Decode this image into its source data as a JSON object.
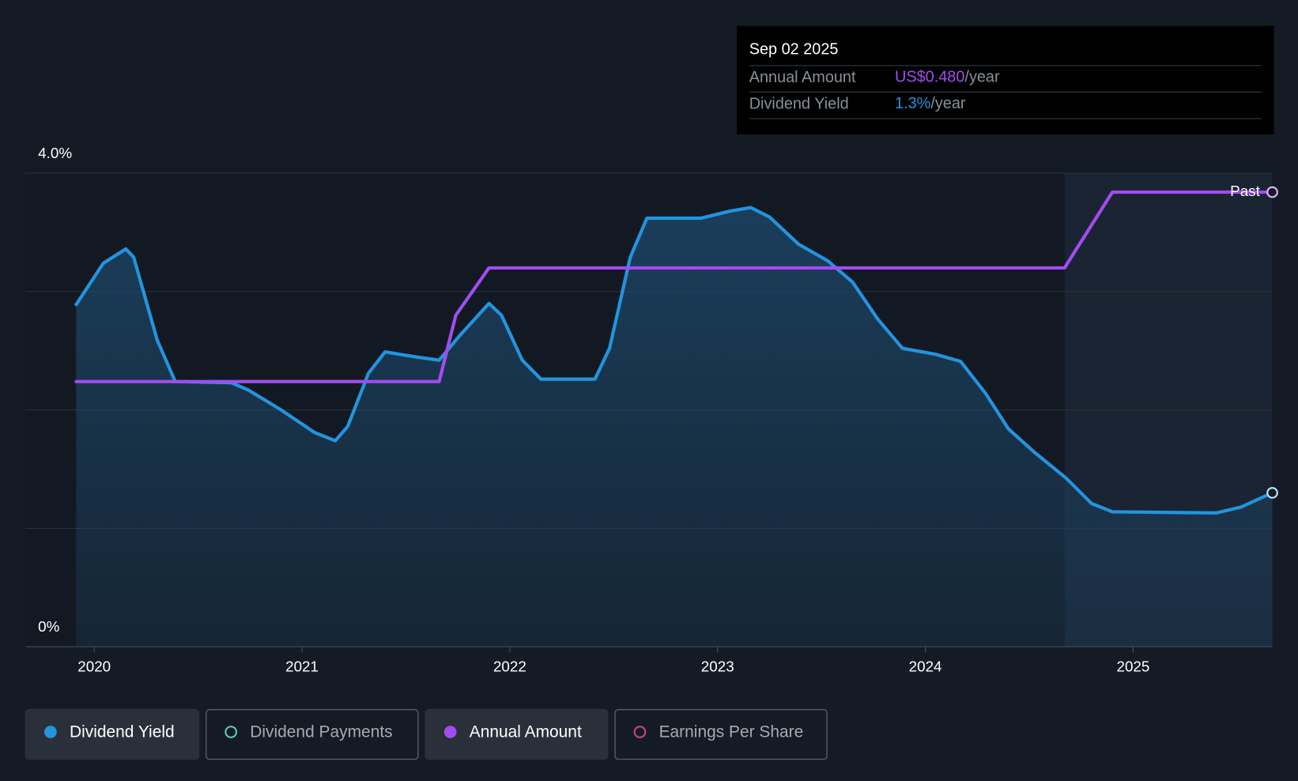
{
  "chart_data": {
    "type": "line",
    "xlim": [
      2019.67,
      2025.67
    ],
    "xticks": [
      2020,
      2021,
      2022,
      2023,
      2024,
      2025
    ],
    "ylim": [
      0,
      4
    ],
    "yticks": [
      {
        "value": 0,
        "label": "0%"
      },
      {
        "value": 1,
        "label": null
      },
      {
        "value": 2,
        "label": null
      },
      {
        "value": 3,
        "label": null
      },
      {
        "value": 4,
        "label": "4.0%"
      }
    ],
    "y2lim": [
      0,
      0.5
    ],
    "grid": true,
    "highlight_from": 2024.67,
    "highlight_label": "Past",
    "series": [
      {
        "name": "Dividend Yield",
        "color": "#2394df",
        "area": true,
        "x": [
          2019.913,
          2020.044,
          2020.152,
          2020.19,
          2020.303,
          2020.39,
          2020.66,
          2020.74,
          2020.9,
          2021.06,
          2021.16,
          2021.22,
          2021.32,
          2021.4,
          2021.54,
          2021.66,
          2021.76,
          2021.9,
          2021.96,
          2022.06,
          2022.15,
          2022.41,
          2022.48,
          2022.58,
          2022.66,
          2022.92,
          2023.06,
          2023.16,
          2023.25,
          2023.39,
          2023.53,
          2023.65,
          2023.77,
          2023.89,
          2024.05,
          2024.17,
          2024.29,
          2024.4,
          2024.52,
          2024.68,
          2024.8,
          2024.9,
          2025.4,
          2025.52,
          2025.67
        ],
        "values": [
          2.89,
          3.24,
          3.36,
          3.29,
          2.59,
          2.24,
          2.23,
          2.17,
          2.0,
          1.81,
          1.74,
          1.86,
          2.31,
          2.49,
          2.45,
          2.42,
          2.63,
          2.9,
          2.8,
          2.42,
          2.26,
          2.26,
          2.52,
          3.29,
          3.62,
          3.62,
          3.68,
          3.71,
          3.63,
          3.4,
          3.26,
          3.08,
          2.77,
          2.52,
          2.47,
          2.41,
          2.14,
          1.84,
          1.65,
          1.42,
          1.21,
          1.14,
          1.13,
          1.18,
          1.3
        ]
      },
      {
        "name": "Annual Amount",
        "color": "#a24cf0",
        "axis": "y2",
        "x": [
          2019.913,
          2021.66,
          2021.74,
          2021.9,
          2024.67,
          2024.9,
          2025.67
        ],
        "values": [
          0.28,
          0.28,
          0.35,
          0.4,
          0.4,
          0.48,
          0.48
        ]
      }
    ],
    "inactive_series": [
      {
        "name": "Dividend Payments",
        "color": "#5ec8b8"
      },
      {
        "name": "Earnings Per Share",
        "color": "#c2477f"
      }
    ],
    "tooltip": {
      "date": "Sep 02 2025",
      "rows": [
        {
          "label": "Annual Amount",
          "value": "US$0.480",
          "unit": "/year",
          "color": "#a24cf0"
        },
        {
          "label": "Dividend Yield",
          "value": "1.3%",
          "unit": "/year",
          "color": "#2394df"
        }
      ]
    }
  }
}
